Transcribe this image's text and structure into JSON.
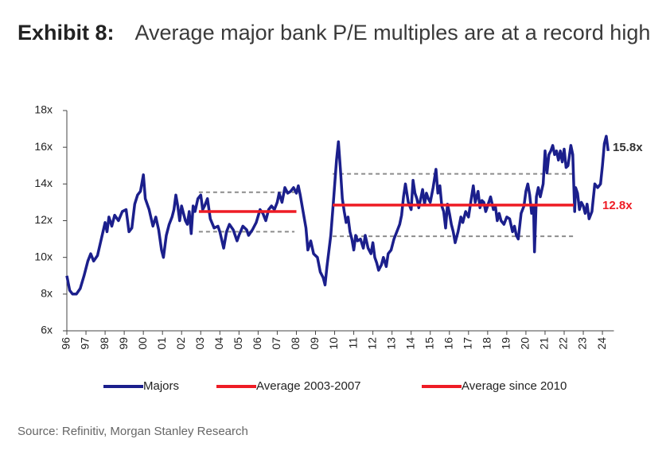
{
  "chart_data": {
    "type": "line",
    "title_label": "Exhibit 8:",
    "title": "Average major bank P/E multiples are at a record high",
    "source": "Source: Refinitiv, Morgan Stanley Research",
    "xlim": [
      1996,
      2024.6
    ],
    "xticks": [
      {
        "value": 1996,
        "label": "96"
      },
      {
        "value": 1997,
        "label": "97"
      },
      {
        "value": 1998,
        "label": "98"
      },
      {
        "value": 1999,
        "label": "99"
      },
      {
        "value": 2000,
        "label": "00"
      },
      {
        "value": 2001,
        "label": "01"
      },
      {
        "value": 2002,
        "label": "02"
      },
      {
        "value": 2003,
        "label": "03"
      },
      {
        "value": 2004,
        "label": "04"
      },
      {
        "value": 2005,
        "label": "05"
      },
      {
        "value": 2006,
        "label": "06"
      },
      {
        "value": 2007,
        "label": "07"
      },
      {
        "value": 2008,
        "label": "08"
      },
      {
        "value": 2009,
        "label": "09"
      },
      {
        "value": 2010,
        "label": "10"
      },
      {
        "value": 2011,
        "label": "11"
      },
      {
        "value": 2012,
        "label": "12"
      },
      {
        "value": 2013,
        "label": "13"
      },
      {
        "value": 2014,
        "label": "14"
      },
      {
        "value": 2015,
        "label": "15"
      },
      {
        "value": 2016,
        "label": "16"
      },
      {
        "value": 2017,
        "label": "17"
      },
      {
        "value": 2018,
        "label": "18"
      },
      {
        "value": 2019,
        "label": "19"
      },
      {
        "value": 2020,
        "label": "20"
      },
      {
        "value": 2021,
        "label": "21"
      },
      {
        "value": 2022,
        "label": "22"
      },
      {
        "value": 2023,
        "label": "23"
      },
      {
        "value": 2024,
        "label": "24"
      }
    ],
    "ylim": [
      6,
      18
    ],
    "yticks": [
      {
        "value": 6,
        "label": "6x"
      },
      {
        "value": 8,
        "label": "8x"
      },
      {
        "value": 10,
        "label": "10x"
      },
      {
        "value": 12,
        "label": "12x"
      },
      {
        "value": 14,
        "label": "14x"
      },
      {
        "value": 16,
        "label": "16x"
      },
      {
        "value": 18,
        "label": "18x"
      }
    ],
    "series": [
      {
        "name": "Majors",
        "color": "#1b1f8c",
        "x": [
          1996.0,
          1996.15,
          1996.3,
          1996.5,
          1996.7,
          1996.9,
          1997.1,
          1997.25,
          1997.4,
          1997.6,
          1997.8,
          1998.0,
          1998.1,
          1998.2,
          1998.35,
          1998.5,
          1998.7,
          1998.9,
          1999.1,
          1999.25,
          1999.4,
          1999.55,
          1999.7,
          1999.85,
          2000.0,
          2000.1,
          2000.3,
          2000.5,
          2000.65,
          2000.8,
          2000.95,
          2001.05,
          2001.2,
          2001.35,
          2001.5,
          2001.6,
          2001.7,
          2001.8,
          2001.9,
          2002.0,
          2002.1,
          2002.2,
          2002.3,
          2002.4,
          2002.5,
          2002.6,
          2002.7,
          2002.85,
          2003.0,
          2003.1,
          2003.2,
          2003.35,
          2003.5,
          2003.7,
          2003.9,
          2004.0,
          2004.2,
          2004.35,
          2004.5,
          2004.7,
          2004.9,
          2005.0,
          2005.2,
          2005.4,
          2005.5,
          2005.7,
          2005.9,
          2006.1,
          2006.25,
          2006.4,
          2006.55,
          2006.7,
          2006.85,
          2007.0,
          2007.1,
          2007.25,
          2007.4,
          2007.55,
          2007.7,
          2007.85,
          2008.0,
          2008.1,
          2008.2,
          2008.35,
          2008.5,
          2008.6,
          2008.75,
          2008.9,
          2009.1,
          2009.25,
          2009.4,
          2009.5,
          2009.6,
          2009.8,
          2009.95,
          2010.1,
          2010.2,
          2010.3,
          2010.4,
          2010.5,
          2010.6,
          2010.7,
          2010.8,
          2010.9,
          2011.0,
          2011.1,
          2011.2,
          2011.35,
          2011.5,
          2011.6,
          2011.75,
          2011.9,
          2012.0,
          2012.1,
          2012.2,
          2012.3,
          2012.45,
          2012.55,
          2012.7,
          2012.8,
          2012.95,
          2013.1,
          2013.25,
          2013.4,
          2013.5,
          2013.6,
          2013.7,
          2013.85,
          2014.0,
          2014.1,
          2014.2,
          2014.3,
          2014.4,
          2014.5,
          2014.6,
          2014.7,
          2014.8,
          2014.9,
          2015.0,
          2015.15,
          2015.3,
          2015.4,
          2015.5,
          2015.6,
          2015.7,
          2015.8,
          2015.9,
          2016.0,
          2016.1,
          2016.2,
          2016.3,
          2016.45,
          2016.6,
          2016.7,
          2016.85,
          2017.0,
          2017.1,
          2017.25,
          2017.35,
          2017.5,
          2017.6,
          2017.7,
          2017.8,
          2017.9,
          2018.0,
          2018.15,
          2018.3,
          2018.4,
          2018.5,
          2018.6,
          2018.7,
          2018.85,
          2019.0,
          2019.15,
          2019.3,
          2019.4,
          2019.5,
          2019.6,
          2019.75,
          2019.9,
          2020.0,
          2020.1,
          2020.2,
          2020.3,
          2020.4,
          2020.45,
          2020.55,
          2020.65,
          2020.75,
          2020.9,
          2021.0,
          2021.1,
          2021.2,
          2021.3,
          2021.4,
          2021.5,
          2021.6,
          2021.7,
          2021.8,
          2021.9,
          2022.0,
          2022.1,
          2022.2,
          2022.35,
          2022.45,
          2022.55,
          2022.6,
          2022.7,
          2022.8,
          2022.9,
          2023.0,
          2023.1,
          2023.2,
          2023.3,
          2023.45,
          2023.6,
          2023.75,
          2023.9,
          2024.0,
          2024.1,
          2024.2,
          2024.3
        ],
        "values": [
          9.0,
          8.2,
          8.0,
          8.0,
          8.3,
          9.0,
          9.8,
          10.2,
          9.8,
          10.1,
          11.0,
          11.9,
          11.4,
          12.2,
          11.7,
          12.3,
          12.0,
          12.5,
          12.6,
          11.4,
          11.6,
          12.9,
          13.4,
          13.6,
          14.5,
          13.2,
          12.6,
          11.7,
          12.2,
          11.5,
          10.4,
          10.0,
          11.2,
          11.8,
          12.2,
          12.6,
          13.4,
          12.8,
          12.0,
          12.8,
          12.4,
          12.0,
          11.8,
          12.5,
          11.3,
          12.8,
          12.5,
          13.2,
          13.4,
          12.6,
          12.8,
          13.2,
          12.1,
          11.6,
          11.7,
          11.4,
          10.5,
          11.4,
          11.8,
          11.5,
          10.9,
          11.2,
          11.7,
          11.5,
          11.2,
          11.5,
          11.9,
          12.6,
          12.4,
          12.0,
          12.6,
          12.8,
          12.6,
          13.0,
          13.5,
          13.0,
          13.8,
          13.5,
          13.6,
          13.8,
          13.5,
          13.9,
          13.4,
          12.5,
          11.6,
          10.4,
          10.9,
          10.2,
          10.0,
          9.2,
          8.9,
          8.5,
          9.5,
          11.2,
          13.2,
          15.3,
          16.3,
          14.8,
          13.2,
          12.5,
          11.9,
          12.2,
          11.4,
          11.0,
          10.4,
          11.2,
          10.9,
          11.0,
          10.5,
          11.2,
          10.5,
          10.2,
          10.8,
          10.0,
          9.7,
          9.3,
          9.6,
          10.0,
          9.5,
          10.2,
          10.4,
          11.0,
          11.4,
          11.8,
          12.3,
          13.3,
          14.0,
          13.0,
          12.6,
          14.2,
          13.5,
          13.2,
          12.7,
          13.2,
          13.7,
          12.9,
          13.5,
          13.2,
          13.0,
          13.8,
          14.8,
          13.5,
          13.9,
          12.8,
          12.5,
          11.6,
          12.9,
          12.4,
          11.8,
          11.4,
          10.8,
          11.4,
          12.2,
          11.9,
          12.5,
          12.2,
          12.9,
          13.9,
          13.0,
          13.6,
          12.7,
          13.1,
          13.0,
          12.5,
          12.8,
          13.3,
          12.6,
          12.8,
          12.0,
          12.4,
          12.0,
          11.8,
          12.2,
          12.1,
          11.4,
          11.7,
          11.2,
          11.0,
          12.4,
          12.8,
          13.6,
          14.0,
          13.4,
          12.4,
          12.8,
          10.3,
          13.3,
          13.8,
          13.3,
          14.0,
          15.8,
          14.6,
          15.6,
          15.8,
          16.1,
          15.6,
          15.8,
          15.3,
          15.8,
          15.2,
          15.9,
          14.9,
          15.0,
          16.1,
          15.6,
          12.5,
          13.8,
          13.5,
          12.6,
          13.0,
          12.8,
          12.4,
          12.9,
          12.1,
          12.5,
          14.0,
          13.8,
          14.0,
          15.0,
          16.2,
          16.6,
          15.8
        ]
      },
      {
        "name": "Average 2003-2007",
        "color": "#ee1c25",
        "x": [
          2002.9,
          2008.0
        ],
        "values": [
          12.5,
          12.5
        ]
      },
      {
        "name": "Average since 2010",
        "color": "#ee1c25",
        "x": [
          2009.9,
          2022.5
        ],
        "values": [
          12.85,
          12.85
        ]
      }
    ],
    "bands": [
      {
        "color": "#8c8c8c",
        "x": [
          2002.9,
          2007.9
        ],
        "values": [
          13.55,
          13.55
        ]
      },
      {
        "color": "#8c8c8c",
        "x": [
          2002.9,
          2007.9
        ],
        "values": [
          11.4,
          11.4
        ]
      },
      {
        "color": "#8c8c8c",
        "x": [
          2009.9,
          2022.5
        ],
        "values": [
          14.55,
          14.55
        ]
      },
      {
        "color": "#8c8c8c",
        "x": [
          2009.9,
          2022.5
        ],
        "values": [
          11.15,
          11.15
        ]
      }
    ],
    "annotations": [
      {
        "text": "15.8x",
        "color": "#333333"
      },
      {
        "text": "12.8x",
        "color": "#ee1c25"
      }
    ]
  }
}
